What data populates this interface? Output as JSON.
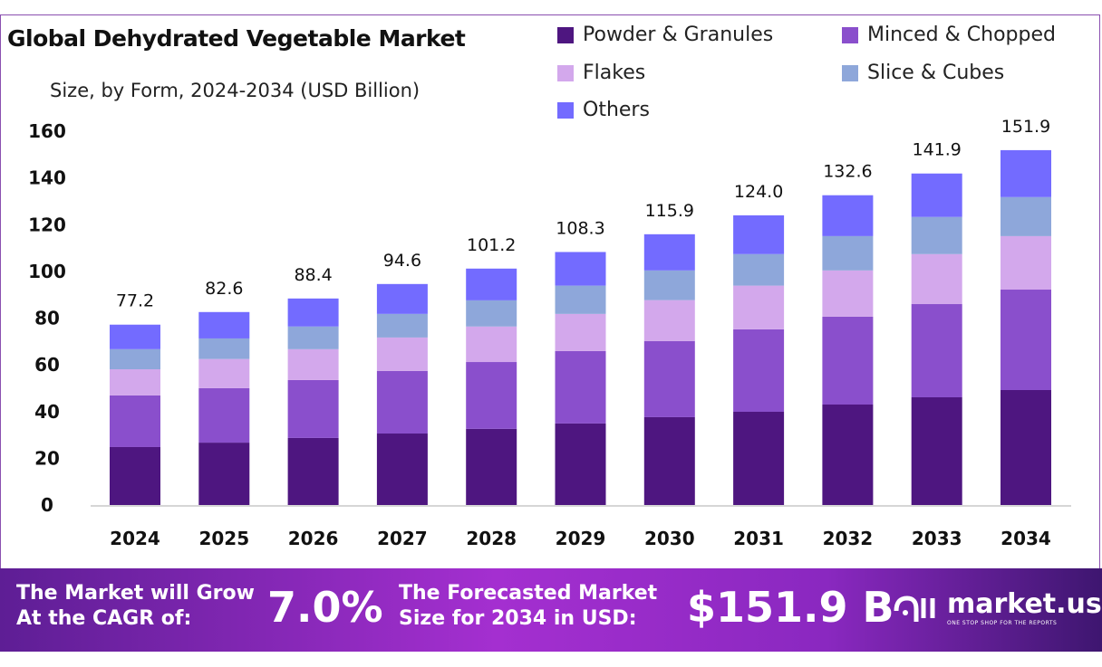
{
  "chart_data": {
    "type": "bar",
    "stacked": true,
    "title": "Global Dehydrated Vegetable Market",
    "subtitle": "Size, by Form, 2024-2034 (USD Billion)",
    "categories": [
      "2024",
      "2025",
      "2026",
      "2027",
      "2028",
      "2029",
      "2030",
      "2031",
      "2032",
      "2033",
      "2034"
    ],
    "totals": [
      "77.2",
      "82.6",
      "88.4",
      "94.6",
      "101.2",
      "108.3",
      "115.9",
      "124.0",
      "132.6",
      "141.9",
      "151.9"
    ],
    "series": [
      {
        "name": "Powder & Granules",
        "color": "#4e1680",
        "values": [
          24.8,
          26.7,
          28.7,
          30.6,
          32.6,
          34.9,
          37.6,
          39.9,
          43.0,
          46.1,
          49.2
        ]
      },
      {
        "name": "Minced & Chopped",
        "color": "#8a4fcc",
        "values": [
          22.1,
          23.3,
          24.8,
          26.8,
          28.6,
          31.0,
          32.6,
          35.3,
          37.6,
          39.9,
          43.0
        ]
      },
      {
        "name": "Flakes",
        "color": "#d3a8ec",
        "values": [
          11.2,
          12.5,
          13.2,
          14.3,
          15.2,
          15.9,
          17.5,
          18.7,
          19.8,
          21.4,
          22.9
        ]
      },
      {
        "name": "Slice & Cubes",
        "color": "#8ea7da",
        "values": [
          8.6,
          8.8,
          9.7,
          10.1,
          11.2,
          12.1,
          12.7,
          13.5,
          14.7,
          15.9,
          16.7
        ]
      },
      {
        "name": "Others",
        "color": "#736bff",
        "values": [
          10.5,
          11.3,
          12.0,
          12.8,
          13.6,
          14.4,
          15.5,
          16.6,
          17.5,
          18.6,
          20.1
        ]
      }
    ],
    "ylim": [
      0,
      160
    ],
    "yticks": [
      "0",
      "20",
      "40",
      "60",
      "80",
      "100",
      "120",
      "140",
      "160"
    ],
    "grid": false,
    "legend": "top-right"
  },
  "footer": {
    "cagr_label_1": "The Market will Grow",
    "cagr_label_2": "At the CAGR of:",
    "cagr_value": "7.0%",
    "forecast_label_1": "The Forecasted Market",
    "forecast_label_2": "Size for 2034 in USD:",
    "forecast_value": "$151.9 B",
    "brand": "market.us",
    "brand_tagline": "ONE STOP SHOP FOR THE REPORTS"
  }
}
